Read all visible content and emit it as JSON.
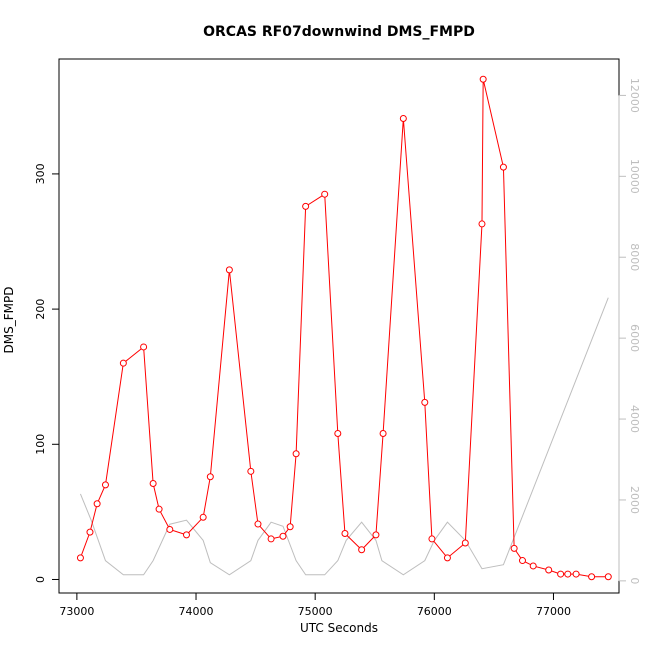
{
  "chart_data": {
    "type": "line",
    "title": "ORCAS RF07downwind DMS_FMPD",
    "xlabel": "UTC Seconds",
    "ylabel": "DMS_FMPD",
    "xlim": [
      72850,
      77550
    ],
    "ylim": [
      -10,
      385
    ],
    "y2lim": [
      -300,
      12900
    ],
    "xticks": [
      73000,
      74000,
      75000,
      76000,
      77000
    ],
    "xtick_labels": [
      "73000",
      "74000",
      "75000",
      "76000",
      "77000"
    ],
    "yticks": [
      0,
      100,
      200,
      300
    ],
    "ytick_labels": [
      "0",
      "100",
      "200",
      "300"
    ],
    "y2ticks": [
      0,
      2000,
      4000,
      6000,
      8000,
      10000,
      12000
    ],
    "y2tick_labels": [
      "0",
      "2000",
      "4000",
      "6000",
      "8000",
      "10000",
      "12000"
    ],
    "grid": false,
    "series": [
      {
        "axis": "left",
        "color": "#ff0000",
        "marker": "open-circle",
        "x": [
          73030,
          73110,
          73170,
          73240,
          73390,
          73560,
          73640,
          73690,
          73780,
          73920,
          74060,
          74120,
          74280,
          74460,
          74520,
          74630,
          74730,
          74790,
          74840,
          74920,
          75080,
          75190,
          75250,
          75390,
          75510,
          75570,
          75740,
          75920,
          75980,
          76110,
          76260,
          76400,
          76410,
          76580,
          76670,
          76740,
          76830,
          76960,
          77060,
          77120,
          77190,
          77320,
          77460
        ],
        "y": [
          16,
          35,
          56,
          70,
          160,
          172,
          71,
          52,
          37,
          33,
          46,
          76,
          229,
          80,
          41,
          30,
          32,
          39,
          93,
          276,
          285,
          108,
          34,
          22,
          33,
          108,
          341,
          131,
          30,
          16,
          27,
          263,
          370,
          305,
          23,
          14,
          10,
          7,
          4,
          4,
          4,
          2,
          2
        ]
      },
      {
        "axis": "right",
        "color": "#bebebe",
        "marker": "none",
        "x": [
          73030,
          73120,
          73240,
          73390,
          73560,
          73640,
          73780,
          73920,
          74060,
          74120,
          74280,
          74460,
          74520,
          74630,
          74730,
          74840,
          74920,
          75080,
          75190,
          75260,
          75390,
          75510,
          75560,
          75740,
          75920,
          76000,
          76110,
          76260,
          76400,
          76580,
          77460
        ],
        "y": [
          2150,
          1500,
          500,
          150,
          150,
          500,
          1400,
          1500,
          1000,
          450,
          150,
          500,
          1000,
          1450,
          1350,
          500,
          150,
          150,
          500,
          1000,
          1450,
          1000,
          500,
          150,
          500,
          1000,
          1450,
          1000,
          300,
          400,
          7000
        ]
      }
    ]
  }
}
